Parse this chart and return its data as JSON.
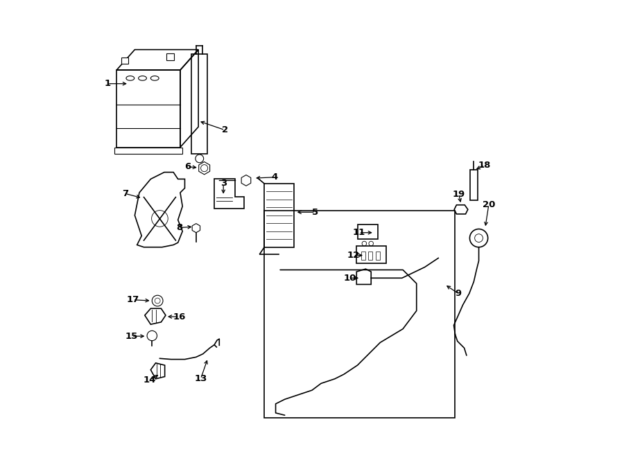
{
  "bg_color": "#ffffff",
  "line_color": "#000000",
  "figure_width": 9.0,
  "figure_height": 6.61,
  "dpi": 100
}
